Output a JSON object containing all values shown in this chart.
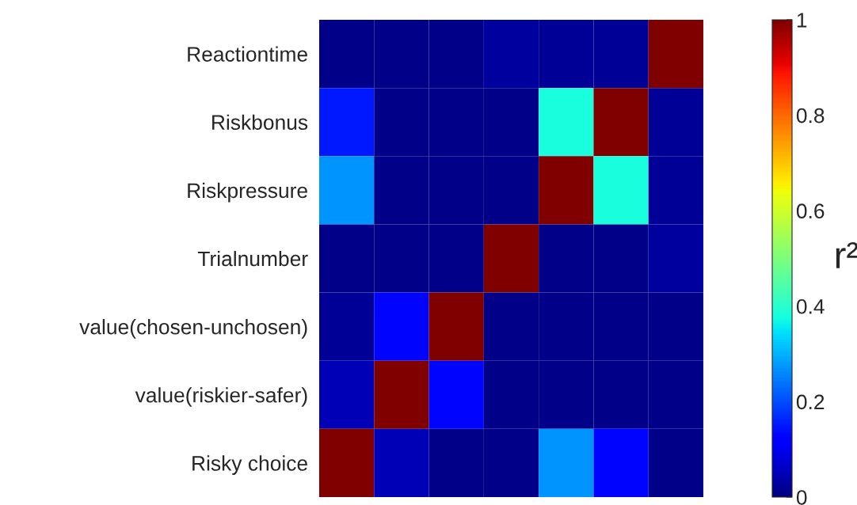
{
  "chart_data": {
    "type": "heatmap",
    "categories": [
      null,
      null,
      null,
      null,
      null,
      null,
      null
    ],
    "y_categories": [
      "Reactiontime",
      "Riskbonus",
      "Riskpressure",
      "Trialnumber",
      "value(chosen-unchosen)",
      "value(riskier-safer)",
      "Risky choice"
    ],
    "cells": [
      [
        0.01,
        0.01,
        0.01,
        0.03,
        0.02,
        0.02,
        1
      ],
      [
        0.15,
        0.01,
        0.01,
        0.01,
        0.38,
        1,
        0.02
      ],
      [
        0.27,
        0.01,
        0.01,
        0.01,
        1,
        0.38,
        0.02
      ],
      [
        0.01,
        0.01,
        0.01,
        1,
        0.01,
        0.01,
        0.03
      ],
      [
        0.02,
        0.13,
        1,
        0.01,
        0.01,
        0.01,
        0.01
      ],
      [
        0.05,
        1,
        0.13,
        0.01,
        0.01,
        0.01,
        0.01
      ],
      [
        1,
        0.05,
        0.01,
        0.01,
        0.27,
        0.13,
        0.01
      ]
    ],
    "clim": [
      0,
      1
    ],
    "cticks": [
      0,
      0.2,
      0.4,
      0.6,
      0.8,
      1
    ],
    "clabel": "r²"
  }
}
